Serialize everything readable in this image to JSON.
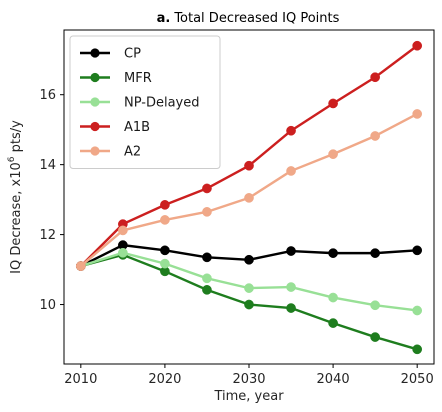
{
  "chart_data": {
    "type": "line",
    "title_prefix": "a.",
    "title": "Total Decreased IQ Points",
    "xlabel": "Time, year",
    "ylabel_main": "IQ Decrease, x10",
    "ylabel_sup": "6",
    "ylabel_unit": " pts/y",
    "xlim": [
      2008,
      2052
    ],
    "ylim": [
      8.3,
      17.85
    ],
    "x_ticks": [
      2010,
      2020,
      2030,
      2040,
      2050
    ],
    "y_ticks": [
      10,
      12,
      14,
      16
    ],
    "x": [
      2010,
      2015,
      2020,
      2025,
      2030,
      2035,
      2040,
      2045,
      2050
    ],
    "grid": false,
    "legend_position": "top-left",
    "series": [
      {
        "name": "CP",
        "color": "#000000",
        "values": [
          11.1,
          11.7,
          11.55,
          11.35,
          11.28,
          11.53,
          11.47,
          11.47,
          11.55
        ]
      },
      {
        "name": "MFR",
        "color": "#1e7d1e",
        "values": [
          11.1,
          11.42,
          10.95,
          10.42,
          10.0,
          9.9,
          9.47,
          9.07,
          8.72
        ]
      },
      {
        "name": "NP-Delayed",
        "color": "#98e096",
        "values": [
          11.1,
          11.48,
          11.17,
          10.75,
          10.47,
          10.5,
          10.2,
          9.98,
          9.83
        ]
      },
      {
        "name": "A1B",
        "color": "#cc1f1f",
        "values": [
          11.1,
          12.3,
          12.85,
          13.32,
          13.97,
          14.97,
          15.75,
          16.5,
          17.4
        ]
      },
      {
        "name": "A2",
        "color": "#f0a888",
        "values": [
          11.1,
          12.12,
          12.42,
          12.65,
          13.05,
          13.82,
          14.3,
          14.82,
          15.45
        ]
      }
    ]
  }
}
